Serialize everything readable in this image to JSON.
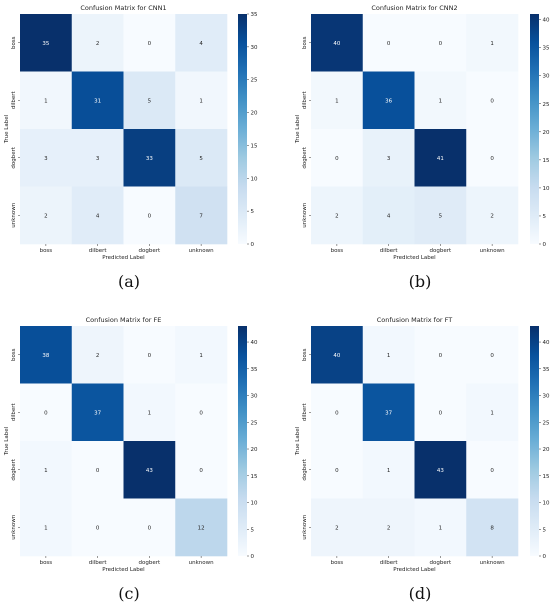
{
  "colorbar_colors": [
    "#f7fbff",
    "#deebf7",
    "#c6dbef",
    "#9ecae1",
    "#6baed6",
    "#4292c6",
    "#2171b5",
    "#08519c",
    "#08306b"
  ],
  "chart_data": [
    {
      "type": "heatmap",
      "title": "Confusion Matrix for CNN1",
      "xlabel": "Predicted Label",
      "ylabel": "True Label",
      "x_ticks": [
        "boss",
        "dilbert",
        "dogbert",
        "unknown"
      ],
      "y_ticks": [
        "boss",
        "dilbert",
        "dogbert",
        "unknown"
      ],
      "values": [
        [
          35,
          2,
          0,
          4
        ],
        [
          1,
          31,
          5,
          1
        ],
        [
          3,
          3,
          33,
          5
        ],
        [
          2,
          4,
          0,
          7
        ]
      ],
      "colorbar_range": [
        0,
        35
      ],
      "colorbar_ticks": [
        0,
        5,
        10,
        15,
        20,
        25,
        30,
        35
      ],
      "panel_label": "(a)"
    },
    {
      "type": "heatmap",
      "title": "Confusion Matrix for CNN2",
      "xlabel": "Predicted Label",
      "ylabel": "True Label",
      "x_ticks": [
        "boss",
        "dilbert",
        "dogbert",
        "unknown"
      ],
      "y_ticks": [
        "boss",
        "dilbert",
        "dogbert",
        "unknown"
      ],
      "values": [
        [
          40,
          0,
          0,
          1
        ],
        [
          1,
          36,
          1,
          0
        ],
        [
          0,
          3,
          41,
          0
        ],
        [
          2,
          4,
          5,
          2
        ]
      ],
      "colorbar_range": [
        0,
        41
      ],
      "colorbar_ticks": [
        0,
        5,
        10,
        15,
        20,
        25,
        30,
        35,
        40
      ],
      "panel_label": "(b)"
    },
    {
      "type": "heatmap",
      "title": "Confusion Matrix for FE",
      "xlabel": "Predicted Label",
      "ylabel": "True Label",
      "x_ticks": [
        "boss",
        "dilbert",
        "dogbert",
        "unknown"
      ],
      "y_ticks": [
        "boss",
        "dilbert",
        "dogbert",
        "unknown"
      ],
      "values": [
        [
          38,
          2,
          0,
          1
        ],
        [
          0,
          37,
          1,
          0
        ],
        [
          1,
          0,
          43,
          0
        ],
        [
          1,
          0,
          0,
          12
        ]
      ],
      "colorbar_range": [
        0,
        43
      ],
      "colorbar_ticks": [
        0,
        5,
        10,
        15,
        20,
        25,
        30,
        35,
        40
      ],
      "panel_label": "(c)"
    },
    {
      "type": "heatmap",
      "title": "Confusion Matrix for FT",
      "xlabel": "Predicted Label",
      "ylabel": "True Label",
      "x_ticks": [
        "boss",
        "dilbert",
        "dogbert",
        "unknown"
      ],
      "y_ticks": [
        "boss",
        "dilbert",
        "dogbert",
        "unknown"
      ],
      "values": [
        [
          40,
          1,
          0,
          0
        ],
        [
          0,
          37,
          0,
          1
        ],
        [
          0,
          1,
          43,
          0
        ],
        [
          2,
          2,
          1,
          8
        ]
      ],
      "colorbar_range": [
        0,
        43
      ],
      "colorbar_ticks": [
        0,
        5,
        10,
        15,
        20,
        25,
        30,
        35,
        40
      ],
      "panel_label": "(d)"
    }
  ]
}
